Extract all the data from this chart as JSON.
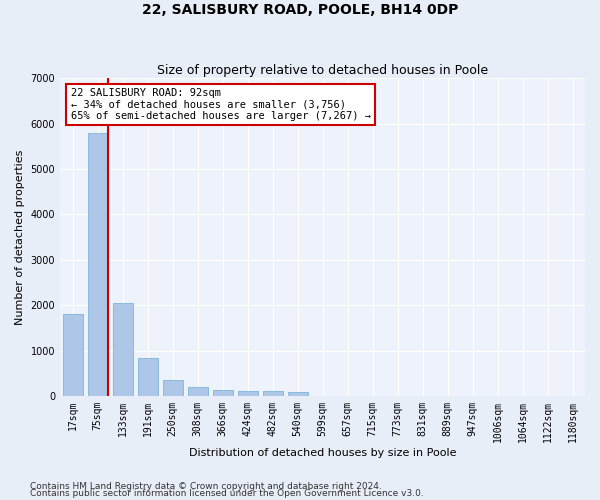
{
  "title": "22, SALISBURY ROAD, POOLE, BH14 0DP",
  "subtitle": "Size of property relative to detached houses in Poole",
  "xlabel": "Distribution of detached houses by size in Poole",
  "ylabel": "Number of detached properties",
  "bar_labels": [
    "17sqm",
    "75sqm",
    "133sqm",
    "191sqm",
    "250sqm",
    "308sqm",
    "366sqm",
    "424sqm",
    "482sqm",
    "540sqm",
    "599sqm",
    "657sqm",
    "715sqm",
    "773sqm",
    "831sqm",
    "889sqm",
    "947sqm",
    "1006sqm",
    "1064sqm",
    "1122sqm",
    "1180sqm"
  ],
  "bar_values": [
    1800,
    5800,
    2050,
    830,
    350,
    200,
    130,
    110,
    110,
    80,
    0,
    0,
    0,
    0,
    0,
    0,
    0,
    0,
    0,
    0,
    0
  ],
  "bar_color": "#aec6e8",
  "bar_edgecolor": "#6aaed6",
  "ylim": [
    0,
    7000
  ],
  "yticks": [
    0,
    1000,
    2000,
    3000,
    4000,
    5000,
    6000,
    7000
  ],
  "property_bin_index": 1,
  "red_line_x": 1.42,
  "red_line_color": "#cc0000",
  "annotation_text": "22 SALISBURY ROAD: 92sqm\n← 34% of detached houses are smaller (3,756)\n65% of semi-detached houses are larger (7,267) →",
  "annotation_box_color": "#ffffff",
  "annotation_box_edgecolor": "#cc0000",
  "footnote1": "Contains HM Land Registry data © Crown copyright and database right 2024.",
  "footnote2": "Contains public sector information licensed under the Open Government Licence v3.0.",
  "bg_color": "#e8eef7",
  "plot_bg_color": "#eef2fa",
  "grid_color": "#ffffff",
  "title_fontsize": 10,
  "subtitle_fontsize": 9,
  "xlabel_fontsize": 8,
  "ylabel_fontsize": 8,
  "tick_fontsize": 7,
  "annotation_fontsize": 7.5,
  "footnote_fontsize": 6.5
}
